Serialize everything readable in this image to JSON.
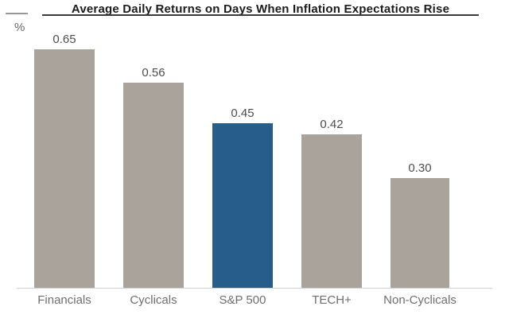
{
  "chart_data": {
    "type": "bar",
    "title": "Average Daily Returns on Days When Inflation Expectations Rise",
    "unit": "%",
    "categories": [
      "Financials",
      "Cyclicals",
      "S&P 500",
      "TECH+",
      "Non-Cyclicals"
    ],
    "values": [
      0.65,
      0.56,
      0.45,
      0.42,
      0.3
    ],
    "value_labels": [
      "0.65",
      "0.56",
      "0.45",
      "0.42",
      "0.30"
    ],
    "highlight_index": 2,
    "xlabel": "",
    "ylabel": "%",
    "ylim": [
      0,
      0.7
    ],
    "grid": false,
    "legend": "none",
    "colors": {
      "bar_default": "#a9a39c",
      "bar_highlight": "#275d8a",
      "title": "#1b1b1b",
      "value_label": "#4d4d4d",
      "category_label": "#6e6e6e",
      "axis_line": "#d0d0d0"
    }
  }
}
